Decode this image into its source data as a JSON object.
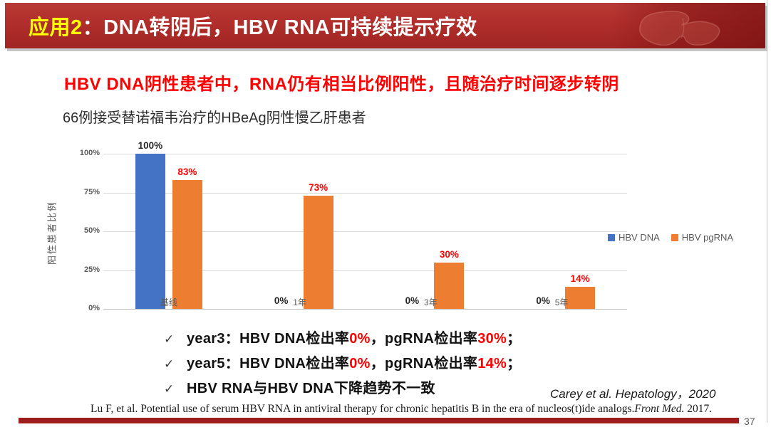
{
  "slide": {
    "header": {
      "title_prefix": "应用2",
      "title_colon": "：",
      "title_rest": "DNA转阴后，HBV RNA可持续提示疗效"
    },
    "red_heading": "HBV DNA阴性患者中，RNA仍有相当比例阳性，且随治疗时间逐步转阴",
    "subtitle": "66例接受替诺福韦治疗的HBeAg阴性慢乙肝患者",
    "bullets": [
      {
        "check": "✓",
        "parts": [
          {
            "text": "year3：HBV DNA检出率",
            "red": false
          },
          {
            "text": "0%",
            "red": true
          },
          {
            "text": "，pgRNA检出率",
            "red": false
          },
          {
            "text": "30%",
            "red": true
          },
          {
            "text": "；",
            "red": false
          }
        ]
      },
      {
        "check": "✓",
        "parts": [
          {
            "text": "year5：HBV DNA检出率",
            "red": false
          },
          {
            "text": "0%",
            "red": true
          },
          {
            "text": "，pgRNA检出率",
            "red": false
          },
          {
            "text": "14%",
            "red": true
          },
          {
            "text": "；",
            "red": false
          }
        ]
      },
      {
        "check": "✓",
        "parts": [
          {
            "text": "HBV RNA与HBV DNA下降趋势不一致",
            "red": false
          }
        ]
      }
    ],
    "citation": "Carey et al.  Hepatology，2020",
    "footer": {
      "pre": "Lu F, et al. Potential use of serum HBV RNA in antiviral therapy for chronic hepatitis B in the era of nucleos(t)ide analogs.",
      "italic": "Front Med.",
      "post": " 2017."
    },
    "page_number": "37"
  },
  "chart_data": {
    "type": "bar",
    "title": "",
    "categories": [
      "基线",
      "1年",
      "3年",
      "5年"
    ],
    "series": [
      {
        "name": "HBV DNA",
        "color": "#4472C4",
        "values": [
          100,
          0,
          0,
          0
        ],
        "labels": [
          "100%",
          "0%",
          "0%",
          "0%"
        ],
        "label_color": "#262626"
      },
      {
        "name": "HBV pgRNA",
        "color": "#ED7D31",
        "values": [
          83,
          73,
          30,
          14
        ],
        "labels": [
          "83%",
          "73%",
          "30%",
          "14%"
        ],
        "label_color": "#FF0000"
      }
    ],
    "ylabel": "阳性患者比例",
    "xlabel": "",
    "yticks": [
      "0%",
      "25%",
      "50%",
      "75%",
      "100%"
    ],
    "ylim": [
      0,
      100
    ],
    "grid": true,
    "legend_position": "right"
  },
  "colors": {
    "header_red": "#B02E2B",
    "header_red_dark": "#8F1F1D",
    "title_yellow": "#FFFF00",
    "accent_red": "#FF0000",
    "bar_blue": "#4472C4",
    "bar_orange": "#ED7D31",
    "gridline": "#D9D9D9",
    "axis_line": "#BFBFBF",
    "axis_text": "#595959",
    "bottom_bar": "#9E1C1C"
  }
}
